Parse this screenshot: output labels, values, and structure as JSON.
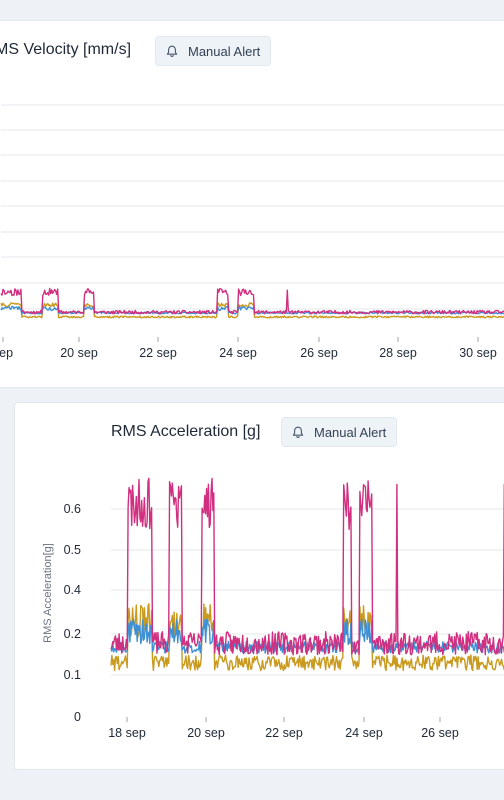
{
  "colors": {
    "background": "#eef2f6",
    "card": "#ffffff",
    "grid": "#e5e7eb",
    "series_magenta": "#d0307f",
    "series_gold": "#c99a1e",
    "series_blue": "#3d8fd6"
  },
  "alert_icon": "bell-icon",
  "card1": {
    "title": "MS Velocity [mm/s]",
    "alert_label": "Manual Alert"
  },
  "card2": {
    "title": "RMS Acceleration [g]",
    "alert_label": "Manual Alert"
  },
  "chart_data": [
    {
      "type": "line",
      "title": "MS Velocity [mm/s]",
      "xlabel": "",
      "ylabel": "",
      "x_tick_labels": [
        "sep",
        "20 sep",
        "22 sep",
        "24 sep",
        "26 sep",
        "28 sep",
        "30 sep"
      ],
      "y_tick_labels": [],
      "ylim": [
        0,
        6
      ],
      "grid": true,
      "series": [
        {
          "color": "#d0307f",
          "baseline": 0.35,
          "burst_level": 0.9,
          "spike": 0.95
        },
        {
          "color": "#3d8fd6",
          "baseline": 0.33,
          "burst_level": 0.45
        },
        {
          "color": "#c99a1e",
          "baseline": 0.22,
          "burst_level": 0.55
        }
      ]
    },
    {
      "type": "line",
      "title": "RMS Acceleration [g]",
      "xlabel": "",
      "ylabel": "RMS Acceleration[g]",
      "x_tick_labels": [
        "18 sep",
        "20 sep",
        "22 sep",
        "24 sep",
        "26 sep"
      ],
      "y_tick_labels": [
        "0",
        "0.1",
        "0.2",
        "0.4",
        "0.5",
        "0.6"
      ],
      "ylim": [
        0,
        0.65
      ],
      "grid": true,
      "series": [
        {
          "color": "#d0307f",
          "baseline": 0.19,
          "burst_level": 0.55,
          "spike": 0.6
        },
        {
          "color": "#3d8fd6",
          "baseline": 0.18,
          "burst_level": 0.22
        },
        {
          "color": "#c99a1e",
          "baseline": 0.14,
          "burst_level": 0.25
        }
      ]
    }
  ]
}
